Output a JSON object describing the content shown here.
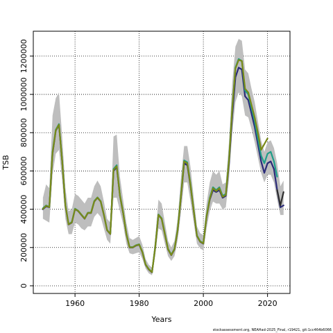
{
  "footer": "stockassessment.org, NEAHad-2025_Final, r19421, git:1cc464b6066",
  "chart_data": {
    "type": "line",
    "title": "",
    "xlabel": "Years",
    "ylabel": "TSB",
    "xlim": [
      1947,
      2027
    ],
    "ylim": [
      -40000,
      1330000
    ],
    "x_ticks": [
      1960,
      1980,
      2000,
      2020
    ],
    "y_ticks": [
      0,
      200000,
      400000,
      600000,
      800000,
      1000000,
      1200000
    ],
    "grid": true,
    "grid_style": "dotted",
    "band_color": "#bebebe",
    "series": [
      {
        "color": "#2a2a78",
        "x": [
          1950,
          1951,
          1952,
          1953,
          1954,
          1955,
          1956,
          1957,
          1958,
          1959,
          1960,
          1961,
          1962,
          1963,
          1964,
          1965,
          1966,
          1967,
          1968,
          1969,
          1970,
          1971,
          1972,
          1973,
          1974,
          1975,
          1976,
          1977,
          1978,
          1979,
          1980,
          1981,
          1982,
          1983,
          1984,
          1985,
          1986,
          1987,
          1988,
          1989,
          1990,
          1991,
          1992,
          1993,
          1994,
          1995,
          1996,
          1997,
          1998,
          1999,
          2000,
          2001,
          2002,
          2003,
          2004,
          2005,
          2006,
          2007,
          2008,
          2009,
          2010,
          2011,
          2012,
          2013,
          2014,
          2015,
          2016,
          2017,
          2018,
          2019,
          2020,
          2021,
          2022,
          2023,
          2024,
          2025
        ],
        "values": [
          400000,
          415000,
          410000,
          690000,
          810000,
          840000,
          650000,
          420000,
          320000,
          330000,
          400000,
          390000,
          370000,
          350000,
          380000,
          380000,
          440000,
          460000,
          440000,
          370000,
          290000,
          270000,
          600000,
          620000,
          470000,
          380000,
          270000,
          200000,
          200000,
          210000,
          215000,
          175000,
          110000,
          85000,
          70000,
          200000,
          370000,
          350000,
          270000,
          190000,
          160000,
          190000,
          290000,
          460000,
          640000,
          630000,
          520000,
          390000,
          260000,
          230000,
          220000,
          360000,
          450000,
          500000,
          490000,
          500000,
          460000,
          470000,
          640000,
          890000,
          1090000,
          1140000,
          1130000,
          990000,
          970000,
          900000,
          830000,
          740000,
          650000,
          590000,
          640000,
          650000,
          610000,
          500000,
          410000,
          420000
        ]
      },
      {
        "color": "#1f9e89",
        "x": [
          1950,
          1951,
          1952,
          1953,
          1954,
          1955,
          1956,
          1957,
          1958,
          1959,
          1960,
          1961,
          1962,
          1963,
          1964,
          1965,
          1966,
          1967,
          1968,
          1969,
          1970,
          1971,
          1972,
          1973,
          1974,
          1975,
          1976,
          1977,
          1978,
          1979,
          1980,
          1981,
          1982,
          1983,
          1984,
          1985,
          1986,
          1987,
          1988,
          1989,
          1990,
          1991,
          1992,
          1993,
          1994,
          1995,
          1996,
          1997,
          1998,
          1999,
          2000,
          2001,
          2002,
          2003,
          2004,
          2005,
          2006,
          2007,
          2008,
          2009,
          2010,
          2011,
          2012,
          2013,
          2014,
          2015,
          2016,
          2017,
          2018,
          2019,
          2020,
          2021,
          2022,
          2023
        ],
        "values": [
          405000,
          420000,
          412000,
          700000,
          815000,
          845000,
          655000,
          422000,
          322000,
          333000,
          403000,
          392000,
          372000,
          352000,
          382000,
          383000,
          443000,
          462000,
          442000,
          372000,
          292000,
          272000,
          610000,
          630000,
          475000,
          383000,
          273000,
          203000,
          202000,
          212000,
          217000,
          177000,
          112000,
          87000,
          72000,
          203000,
          373000,
          353000,
          273000,
          193000,
          163000,
          193000,
          295000,
          470000,
          655000,
          645000,
          530000,
          395000,
          263000,
          233000,
          223000,
          365000,
          460000,
          515000,
          500000,
          515000,
          470000,
          480000,
          660000,
          930000,
          1140000,
          1185000,
          1175000,
          1020000,
          1000000,
          930000,
          860000,
          770000,
          680000,
          640000,
          690000,
          700000,
          650000,
          570000
        ]
      },
      {
        "color": "#7a8a18",
        "x": [
          1950,
          1951,
          1952,
          1953,
          1954,
          1955,
          1956,
          1957,
          1958,
          1959,
          1960,
          1961,
          1962,
          1963,
          1964,
          1965,
          1966,
          1967,
          1968,
          1969,
          1970,
          1971,
          1972,
          1973,
          1974,
          1975,
          1976,
          1977,
          1978,
          1979,
          1980,
          1981,
          1982,
          1983,
          1984,
          1985,
          1986,
          1987,
          1988,
          1989,
          1990,
          1991,
          1992,
          1993,
          1994,
          1995,
          1996,
          1997,
          1998,
          1999,
          2000,
          2001,
          2002,
          2003,
          2004,
          2005,
          2006,
          2007,
          2008,
          2009,
          2010,
          2011,
          2012,
          2013,
          2014,
          2015,
          2016,
          2017,
          2018,
          2019,
          2020
        ],
        "values": [
          402000,
          418000,
          411000,
          695000,
          812000,
          842000,
          652000,
          421000,
          321000,
          331000,
          401000,
          391000,
          371000,
          351000,
          381000,
          381000,
          441000,
          461000,
          441000,
          371000,
          291000,
          271000,
          605000,
          625000,
          472000,
          381000,
          271000,
          201000,
          201000,
          211000,
          216000,
          176000,
          111000,
          86000,
          71000,
          201000,
          371000,
          351000,
          271000,
          191000,
          161000,
          191000,
          292000,
          465000,
          650000,
          640000,
          525000,
          392000,
          261000,
          231000,
          221000,
          362000,
          455000,
          510000,
          495000,
          510000,
          465000,
          475000,
          655000,
          925000,
          1135000,
          1180000,
          1175000,
          1030000,
          1010000,
          945000,
          880000,
          800000,
          710000,
          740000,
          770000
        ]
      },
      {
        "color": "#2e2e2e",
        "x": [
          2023,
          2024,
          2025
        ],
        "values": [
          500000,
          420000,
          490000
        ]
      }
    ],
    "band": {
      "x": [
        1950,
        1951,
        1952,
        1953,
        1954,
        1955,
        1956,
        1957,
        1958,
        1959,
        1960,
        1961,
        1962,
        1963,
        1964,
        1965,
        1966,
        1967,
        1968,
        1969,
        1970,
        1971,
        1972,
        1973,
        1974,
        1975,
        1976,
        1977,
        1978,
        1979,
        1980,
        1981,
        1982,
        1983,
        1984,
        1985,
        1986,
        1987,
        1988,
        1989,
        1990,
        1991,
        1992,
        1993,
        1994,
        1995,
        1996,
        1997,
        1998,
        1999,
        2000,
        2001,
        2002,
        2003,
        2004,
        2005,
        2006,
        2007,
        2008,
        2009,
        2010,
        2011,
        2012,
        2013,
        2014,
        2015,
        2016,
        2017,
        2018,
        2019,
        2020,
        2021,
        2022,
        2023,
        2024,
        2025
      ],
      "lower": [
        350000,
        340000,
        330000,
        580000,
        690000,
        710000,
        550000,
        350000,
        270000,
        270000,
        330000,
        320000,
        300000,
        290000,
        310000,
        310000,
        360000,
        380000,
        360000,
        300000,
        240000,
        220000,
        460000,
        460000,
        390000,
        320000,
        220000,
        170000,
        165000,
        170000,
        175000,
        140000,
        90000,
        65000,
        55000,
        160000,
        300000,
        290000,
        220000,
        155000,
        130000,
        155000,
        240000,
        380000,
        540000,
        540000,
        440000,
        330000,
        220000,
        195000,
        185000,
        300000,
        390000,
        440000,
        430000,
        430000,
        400000,
        410000,
        560000,
        800000,
        960000,
        1010000,
        990000,
        890000,
        880000,
        820000,
        750000,
        670000,
        590000,
        540000,
        580000,
        580000,
        540000,
        450000,
        370000,
        370000
      ],
      "upper": [
        460000,
        530000,
        510000,
        890000,
        980000,
        1010000,
        780000,
        510000,
        390000,
        400000,
        480000,
        470000,
        450000,
        430000,
        460000,
        460000,
        520000,
        550000,
        520000,
        440000,
        350000,
        330000,
        780000,
        790000,
        570000,
        450000,
        330000,
        250000,
        240000,
        250000,
        260000,
        215000,
        140000,
        110000,
        95000,
        250000,
        450000,
        430000,
        330000,
        235000,
        200000,
        235000,
        350000,
        560000,
        730000,
        730000,
        620000,
        460000,
        310000,
        275000,
        265000,
        430000,
        540000,
        600000,
        580000,
        600000,
        530000,
        540000,
        750000,
        1060000,
        1250000,
        1290000,
        1280000,
        1130000,
        1110000,
        1030000,
        960000,
        860000,
        760000,
        700000,
        750000,
        760000,
        720000,
        640000,
        520000,
        550000
      ]
    }
  }
}
